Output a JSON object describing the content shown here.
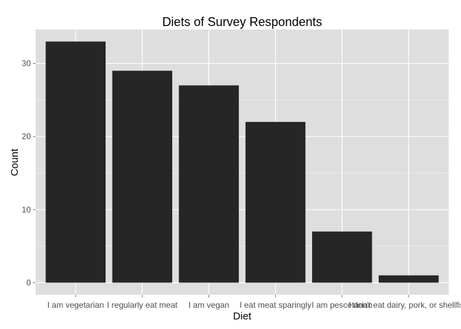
{
  "chart_data": {
    "type": "bar",
    "title": "Diets of Survey Respondents",
    "xlabel": "Diet",
    "ylabel": "Count",
    "categories": [
      "I am vegetarian",
      "I regularly eat meat",
      "I am vegan",
      "I eat meat sparingly",
      "I am pescetarian",
      "I don't eat dairy, pork, or shellfish"
    ],
    "values": [
      33,
      29,
      27,
      22,
      7,
      1
    ],
    "ylim": [
      -1.65,
      34.65
    ],
    "yticks": [
      0,
      10,
      20,
      30
    ],
    "grid": true,
    "legend": "none",
    "colors": {
      "panel": "#dedede",
      "grid_major": "#ffffff",
      "grid_minor": "#ececec",
      "bar": "#262626",
      "tick_label": "#4d4d4d",
      "tick_mark": "#7f7f7f"
    }
  }
}
